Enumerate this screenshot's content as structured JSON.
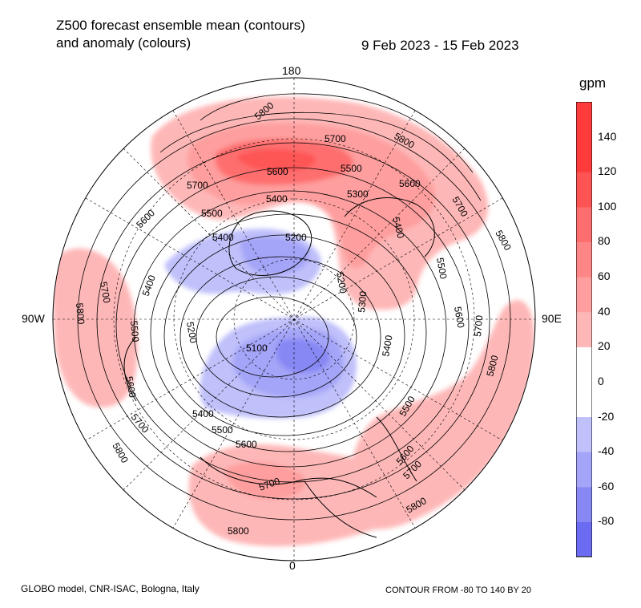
{
  "title": {
    "line1": "Z500 forecast ensemble mean (contours)",
    "line2": "and anomaly (colours)",
    "dates": "9 Feb 2023 - 15 Feb 2023"
  },
  "longitude_labels": {
    "top": "180",
    "bottom": "0",
    "left": "90W",
    "right": "90E"
  },
  "colorbar": {
    "unit": "gpm",
    "ticks": [
      "140",
      "120",
      "100",
      "80",
      "60",
      "40",
      "20",
      "0",
      "-20",
      "-40",
      "-60",
      "-80"
    ],
    "colors": {
      "140": "#fe3b3b",
      "120": "#fe5454",
      "100": "#fe6e6e",
      "80": "#fe8686",
      "60": "#fe9e9e",
      "40": "#feb7b7",
      "20": "#ffffff",
      "0": "#ffffff",
      "-20": "#c0c0fb",
      "-40": "#a4a4f8",
      "-60": "#8888f5",
      "-80": "#6c6cf2"
    }
  },
  "contour_labels": [
    "5800",
    "5700",
    "5600",
    "5500",
    "5400",
    "5300",
    "5200",
    "5100"
  ],
  "footer": {
    "left": "GLOBO model, CNR-ISAC, Bologna, Italy",
    "right": "CONTOUR FROM -80 TO 140 BY 20"
  }
}
